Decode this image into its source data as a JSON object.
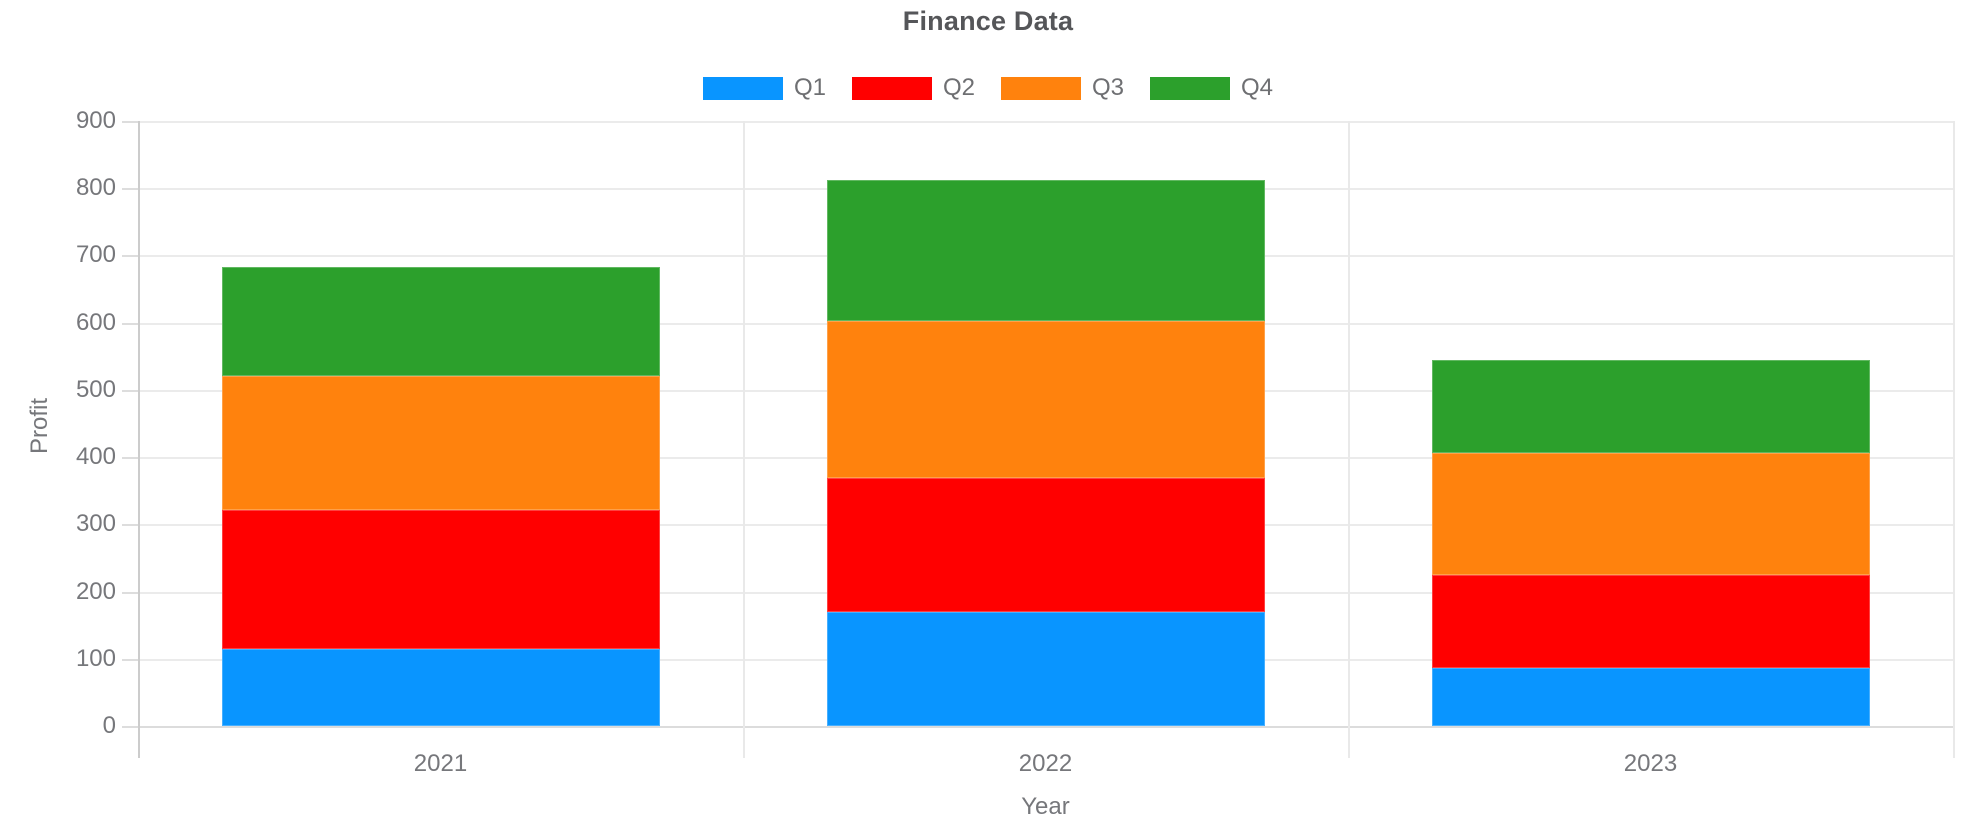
{
  "title": "Finance Data",
  "chart_data": {
    "type": "bar",
    "stacked": true,
    "title": "Finance Data",
    "xlabel": "Year",
    "ylabel": "Profit",
    "categories": [
      "2021",
      "2022",
      "2023"
    ],
    "series": [
      {
        "name": "Q1",
        "color": "#0995ff",
        "values": [
          114,
          170,
          86
        ]
      },
      {
        "name": "Q2",
        "color": "#ff0000",
        "values": [
          207,
          199,
          138
        ]
      },
      {
        "name": "Q3",
        "color": "#ff820d",
        "values": [
          200,
          233,
          182
        ]
      },
      {
        "name": "Q4",
        "color": "#2ca02c",
        "values": [
          162,
          210,
          139
        ]
      }
    ],
    "stack_totals": [
      683,
      812,
      545
    ],
    "ylim": [
      0,
      900
    ],
    "ytick_step": 100,
    "yticks": [
      0,
      100,
      200,
      300,
      400,
      500,
      600,
      700,
      800,
      900
    ],
    "legend_position": "top",
    "grid": true
  },
  "colors": {
    "title_text": "#555659",
    "tick_text": "#76777b",
    "gridline": "#ebebeb",
    "axis_line": "#cccccc",
    "background": "#ffffff"
  }
}
